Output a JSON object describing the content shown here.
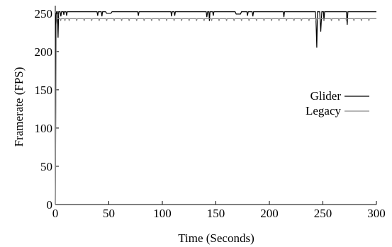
{
  "chart_data": {
    "type": "line",
    "xlabel": "Time (Seconds)",
    "ylabel": "Framerate (FPS)",
    "xlim": [
      0,
      300
    ],
    "ylim": [
      0,
      260
    ],
    "x_ticks": [
      0,
      50,
      100,
      150,
      200,
      250,
      300
    ],
    "y_ticks": [
      0,
      50,
      100,
      150,
      200,
      250
    ],
    "grid": false,
    "legend_position": "right",
    "series": [
      {
        "name": "Glider",
        "color": "#000000",
        "points": [
          [
            0,
            0
          ],
          [
            0.7,
            248
          ],
          [
            1.2,
            252
          ],
          [
            2,
            252
          ],
          [
            2.6,
            218
          ],
          [
            3.2,
            252
          ],
          [
            4.5,
            252
          ],
          [
            5.2,
            246
          ],
          [
            5.8,
            252
          ],
          [
            7.5,
            252
          ],
          [
            8,
            248
          ],
          [
            8.5,
            252
          ],
          [
            10,
            252
          ],
          [
            10.6,
            247
          ],
          [
            11.2,
            252
          ],
          [
            39,
            252
          ],
          [
            39.6,
            247
          ],
          [
            40.2,
            252
          ],
          [
            43,
            252
          ],
          [
            43.6,
            246
          ],
          [
            44.2,
            252
          ],
          [
            47,
            252
          ],
          [
            48,
            250
          ],
          [
            52,
            250
          ],
          [
            53,
            252
          ],
          [
            77,
            252
          ],
          [
            77.6,
            247
          ],
          [
            78.2,
            252
          ],
          [
            108,
            252
          ],
          [
            108.6,
            246
          ],
          [
            109.2,
            252
          ],
          [
            111,
            252
          ],
          [
            111.6,
            247
          ],
          [
            112.2,
            252
          ],
          [
            141,
            252
          ],
          [
            141.6,
            245
          ],
          [
            142.3,
            252
          ],
          [
            143.5,
            252
          ],
          [
            144,
            240
          ],
          [
            144.6,
            252
          ],
          [
            147,
            252
          ],
          [
            147.6,
            247
          ],
          [
            148.2,
            252
          ],
          [
            168,
            252
          ],
          [
            169,
            249
          ],
          [
            173,
            249
          ],
          [
            174,
            252
          ],
          [
            179,
            252
          ],
          [
            179.6,
            247
          ],
          [
            180.2,
            252
          ],
          [
            184,
            252
          ],
          [
            184.6,
            246
          ],
          [
            185.2,
            252
          ],
          [
            213,
            252
          ],
          [
            213.6,
            245
          ],
          [
            214.2,
            252
          ],
          [
            243,
            252
          ],
          [
            243.6,
            240
          ],
          [
            244.3,
            205
          ],
          [
            245,
            252
          ],
          [
            247,
            252
          ],
          [
            248,
            226
          ],
          [
            249,
            252
          ],
          [
            250.5,
            252
          ],
          [
            251,
            240
          ],
          [
            251.6,
            252
          ],
          [
            272,
            252
          ],
          [
            272.7,
            235
          ],
          [
            273.4,
            252
          ],
          [
            300,
            252
          ]
        ]
      },
      {
        "name": "Legacy",
        "color": "#8a8a8a",
        "points": [
          [
            0,
            0
          ],
          [
            1,
            235
          ],
          [
            1.6,
            243
          ],
          [
            300,
            243
          ]
        ],
        "dips": [
          5,
          9,
          13,
          20,
          27,
          34,
          41,
          48,
          55,
          62,
          69,
          76,
          83,
          90,
          97,
          104,
          111,
          118,
          125,
          132,
          139,
          146,
          153,
          160,
          167,
          174,
          181,
          188,
          195,
          202,
          209,
          216,
          223,
          230,
          237,
          244,
          251,
          258,
          265,
          272,
          279,
          286,
          293
        ],
        "dip_value": 240
      }
    ]
  }
}
